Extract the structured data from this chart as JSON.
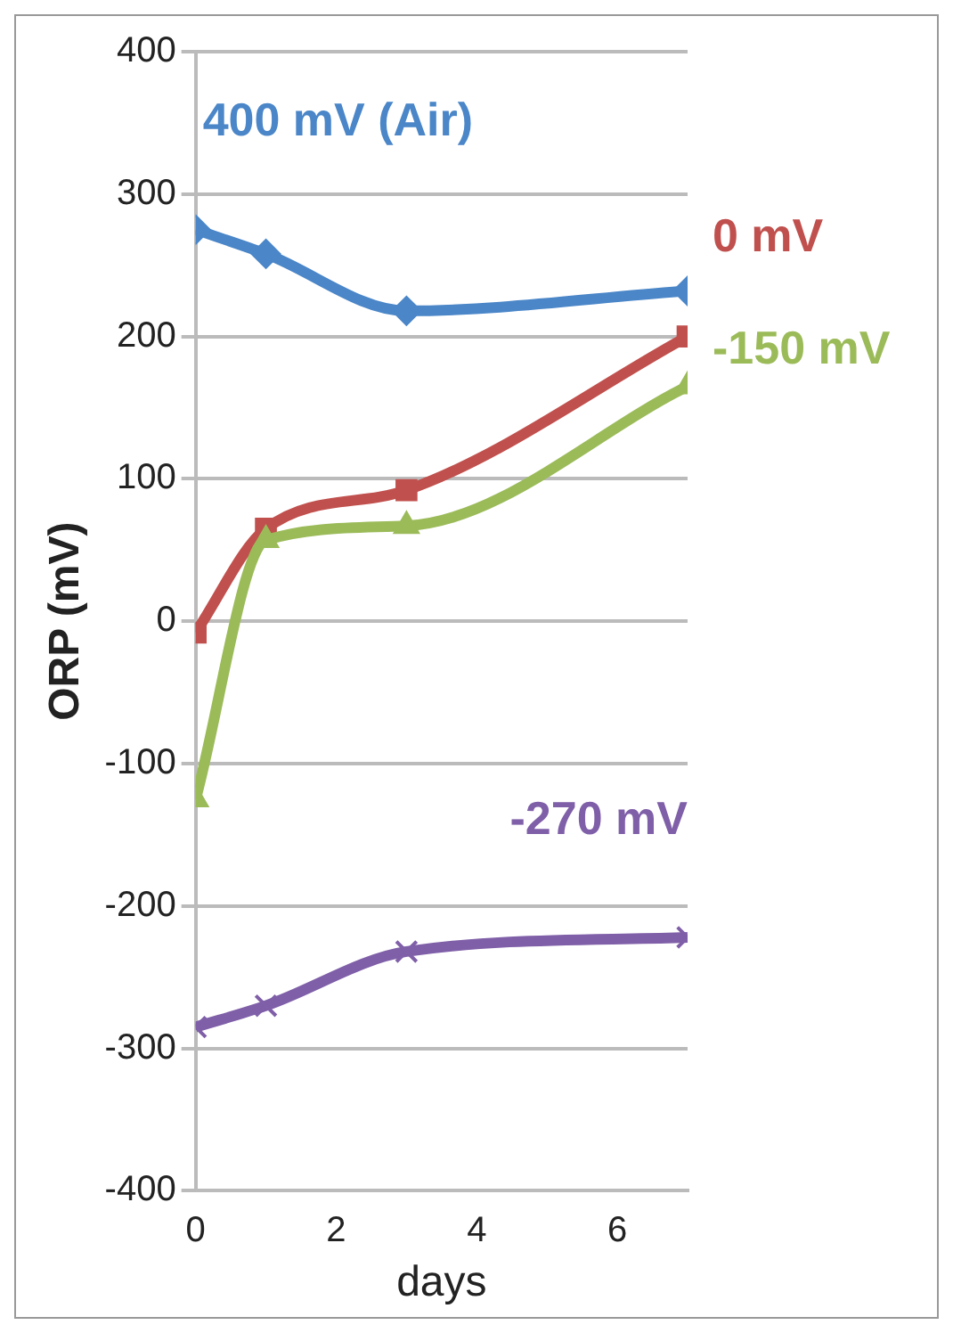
{
  "chart_data": {
    "type": "line",
    "xlabel": "days",
    "ylabel": "ORP (mV)",
    "xlim": [
      0,
      7
    ],
    "xticks": [
      0,
      2,
      4,
      6
    ],
    "ylim": [
      -400,
      400
    ],
    "yticks": [
      -400,
      -300,
      -200,
      -100,
      0,
      100,
      200,
      300,
      400
    ],
    "grid": "y",
    "legend": false,
    "series": [
      {
        "name": "400 mV (Air)",
        "color": "#4a86c8",
        "marker": "diamond",
        "x": [
          0,
          1,
          3,
          7
        ],
        "values": [
          275,
          258,
          218,
          232
        ]
      },
      {
        "name": "0 mV",
        "color": "#c0504d",
        "marker": "square",
        "x": [
          0,
          1,
          3,
          7
        ],
        "values": [
          -8,
          65,
          92,
          200
        ]
      },
      {
        "name": "-150 mV",
        "color": "#9bbb59",
        "marker": "triangle",
        "x": [
          0,
          1,
          3,
          7
        ],
        "values": [
          -125,
          57,
          67,
          165
        ]
      },
      {
        "name": "-270 mV",
        "color": "#7f5fa8",
        "marker": "cross",
        "x": [
          0,
          1,
          3,
          7
        ],
        "values": [
          -285,
          -270,
          -232,
          -222
        ]
      }
    ]
  }
}
